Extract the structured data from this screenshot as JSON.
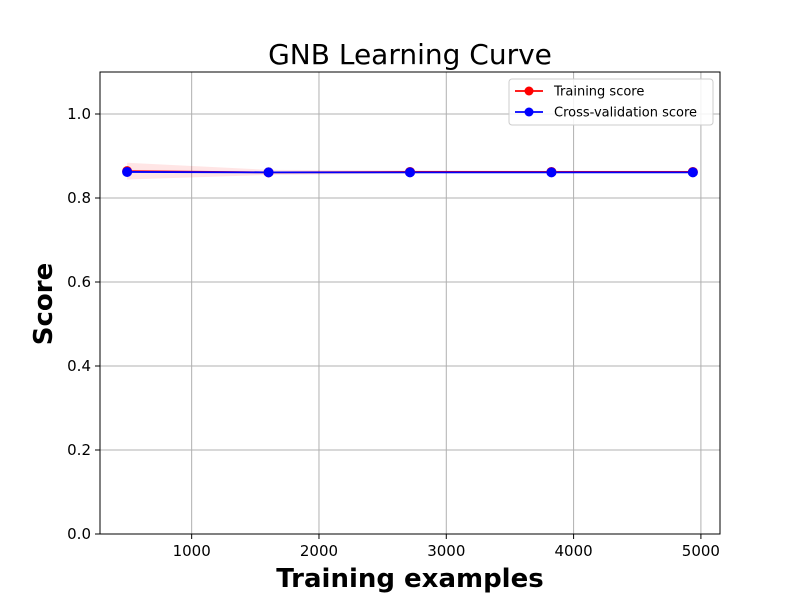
{
  "chart_data": {
    "type": "line",
    "title": "GNB Learning Curve",
    "xlabel": "Training examples",
    "ylabel": "Score",
    "xlim": [
      280,
      5150
    ],
    "ylim": [
      0.0,
      1.1
    ],
    "xticks": [
      1000,
      2000,
      3000,
      4000,
      5000
    ],
    "xtick_labels": [
      "1000",
      "2000",
      "3000",
      "4000",
      "5000"
    ],
    "yticks": [
      0.0,
      0.2,
      0.4,
      0.6,
      0.8,
      1.0
    ],
    "ytick_labels": [
      "0.0",
      "0.2",
      "0.4",
      "0.6",
      "0.8",
      "1.0"
    ],
    "grid": true,
    "legend_position": "top-right",
    "x": [
      493,
      1604,
      2715,
      3826,
      4937
    ],
    "series": [
      {
        "name": "Training score",
        "values": [
          0.864,
          0.861,
          0.862,
          0.862,
          0.862
        ],
        "band": [
          0.02,
          0.006,
          0.004,
          0.003,
          0.003
        ],
        "color": "#ff0000",
        "band_color": "#ff0000"
      },
      {
        "name": "Cross-validation score",
        "values": [
          0.862,
          0.861,
          0.861,
          0.861,
          0.861
        ],
        "band": [
          0.002,
          0.002,
          0.002,
          0.002,
          0.002
        ],
        "color": "#0000ff",
        "band_color": "#00ff00"
      }
    ]
  }
}
